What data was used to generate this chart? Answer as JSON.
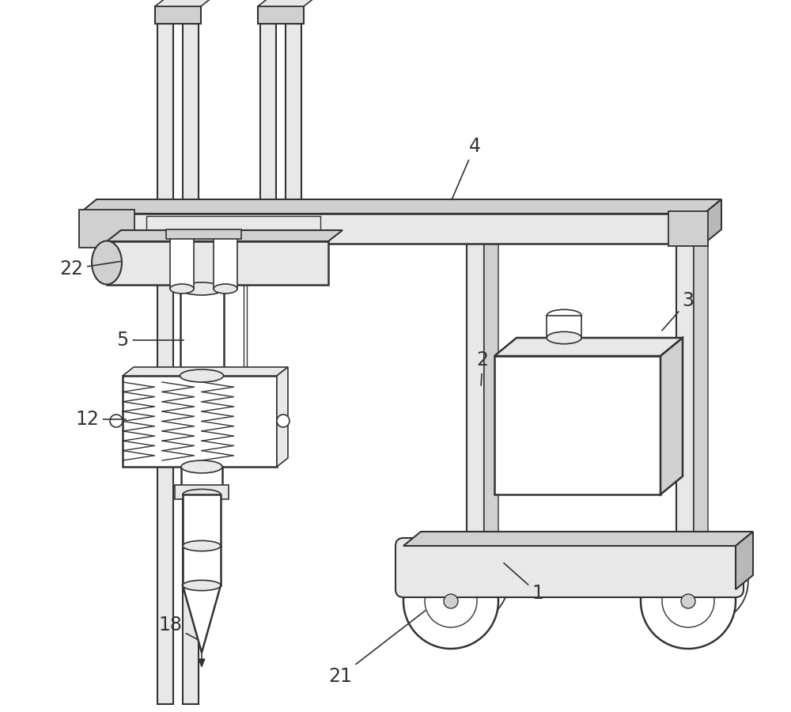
{
  "bg_color": "#ffffff",
  "line_color": "#333333",
  "fill_light": "#e8e8e8",
  "fill_medium": "#d0d0d0",
  "fill_dark": "#b8b8b8",
  "fill_white": "#ffffff",
  "label_fontsize": 17,
  "fig_width": 10,
  "fig_height": 9
}
